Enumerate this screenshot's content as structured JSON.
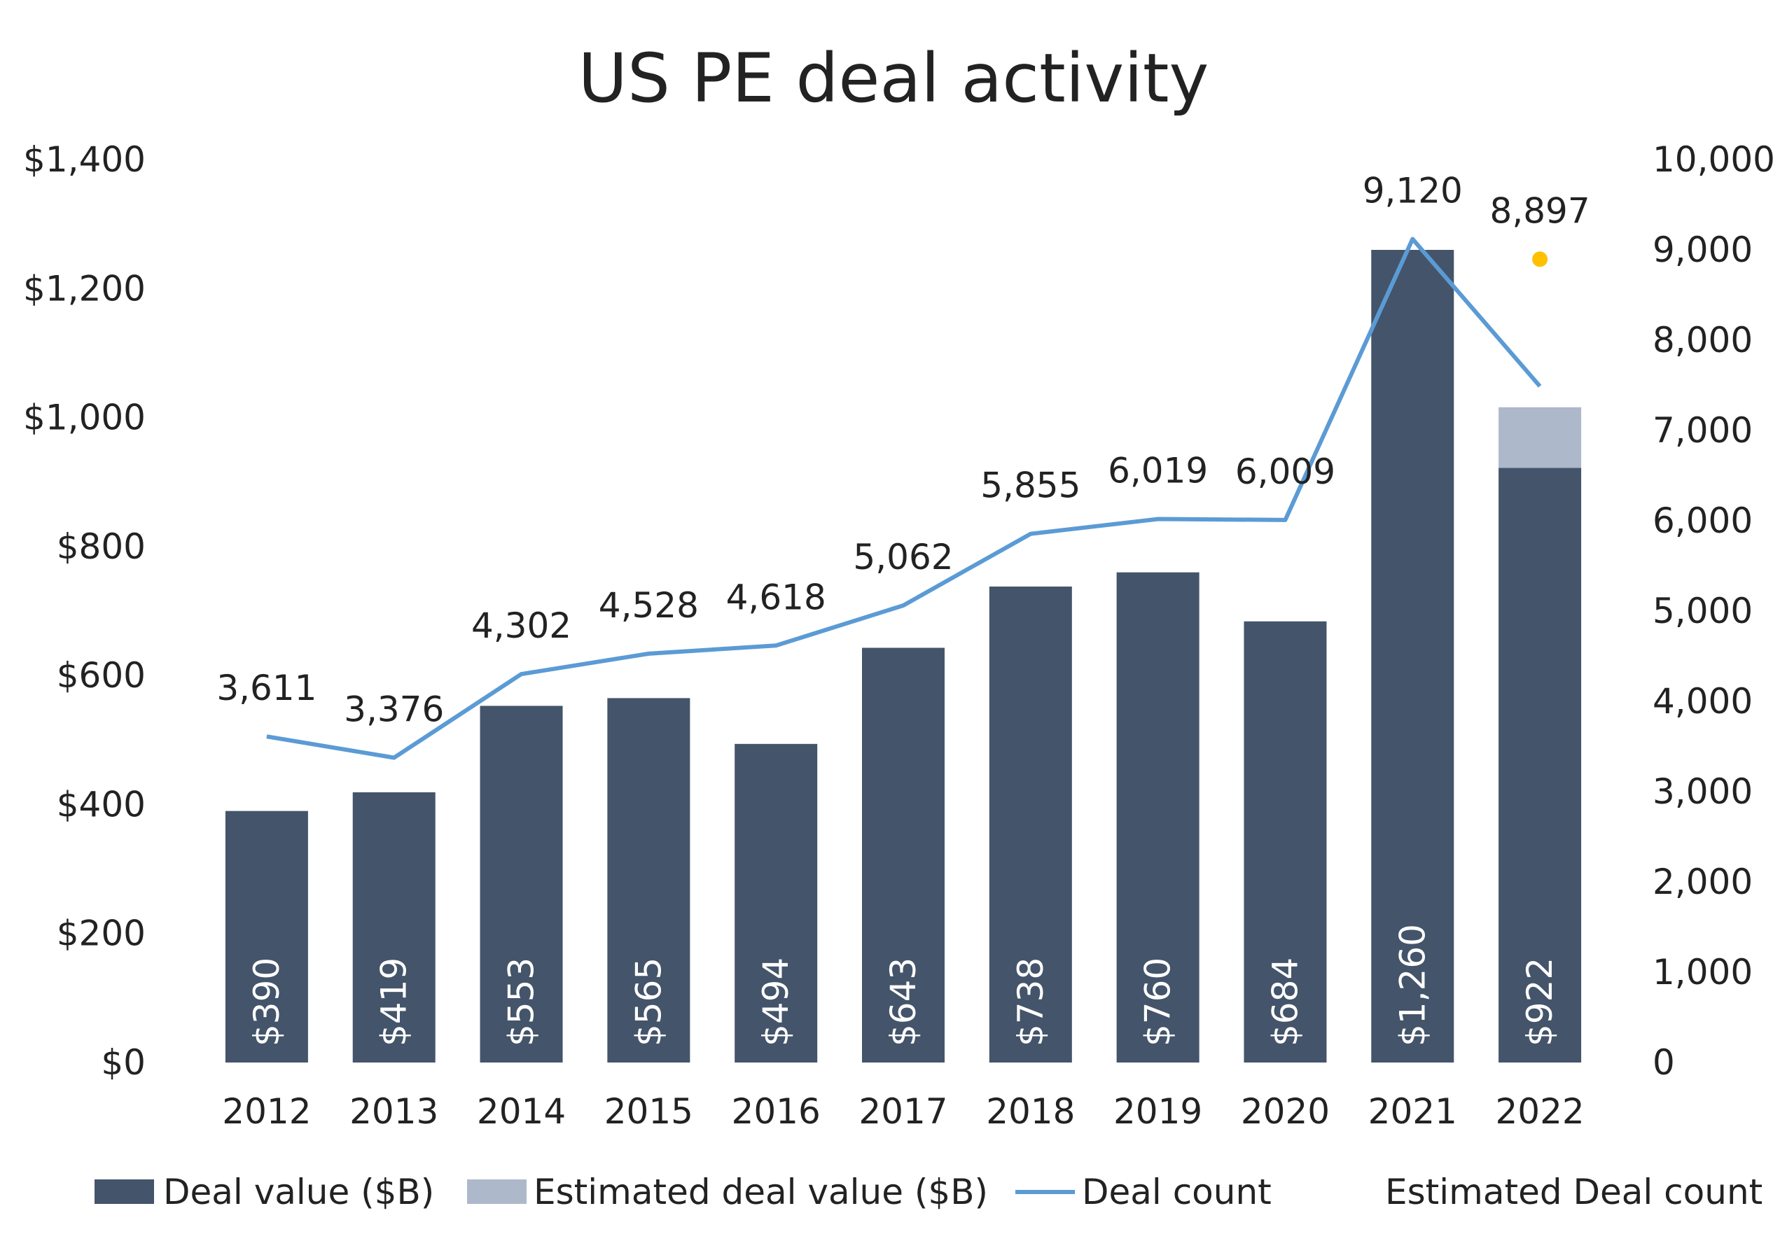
{
  "chart_data": {
    "type": "bar",
    "title": "US PE deal activity",
    "categories": [
      "2012",
      "2013",
      "2014",
      "2015",
      "2016",
      "2017",
      "2018",
      "2019",
      "2020",
      "2021",
      "2022"
    ],
    "series": [
      {
        "name": "Deal value ($B)",
        "kind": "bar",
        "axis": "left",
        "values": [
          390,
          419,
          553,
          565,
          494,
          643,
          738,
          760,
          684,
          1260,
          922
        ],
        "value_labels": [
          "$390",
          "$419",
          "$553",
          "$565",
          "$494",
          "$643",
          "$738",
          "$760",
          "$684",
          "$1,260",
          "$922"
        ]
      },
      {
        "name": "Estimated deal value ($B)",
        "kind": "bar-stacked",
        "axis": "left",
        "values": [
          0,
          0,
          0,
          0,
          0,
          0,
          0,
          0,
          0,
          0,
          94
        ]
      },
      {
        "name": "Deal count",
        "kind": "line",
        "axis": "right",
        "values": [
          3611,
          3376,
          4302,
          4528,
          4618,
          5062,
          5855,
          6019,
          6009,
          9120,
          7490
        ],
        "value_labels": [
          "3,611",
          "3,376",
          "4,302",
          "4,528",
          "4,618",
          "5,062",
          "5,855",
          "6,019",
          "6,009",
          "9,120",
          ""
        ]
      },
      {
        "name": "Estimated Deal count",
        "kind": "point",
        "axis": "right",
        "values": [
          null,
          null,
          null,
          null,
          null,
          null,
          null,
          null,
          null,
          null,
          8897
        ],
        "value_labels": [
          "",
          "",
          "",
          "",
          "",
          "",
          "",
          "",
          "",
          "",
          "8,897"
        ]
      }
    ],
    "y_left": {
      "range": [
        0,
        1400
      ],
      "ticks": [
        "$0",
        "$200",
        "$400",
        "$600",
        "$800",
        "$1,000",
        "$1,200",
        "$1,400"
      ]
    },
    "y_right": {
      "range": [
        0,
        10000
      ],
      "ticks": [
        "0",
        "1,000",
        "2,000",
        "3,000",
        "4,000",
        "5,000",
        "6,000",
        "7,000",
        "8,000",
        "9,000",
        "10,000"
      ]
    },
    "grid": false,
    "legend_position": "bottom",
    "colors": {
      "deal_value": "#44546a",
      "estimated_deal_value": "#adb9ca",
      "deal_count": "#5b9bd5",
      "estimated_deal_count": "#ffc000"
    }
  }
}
